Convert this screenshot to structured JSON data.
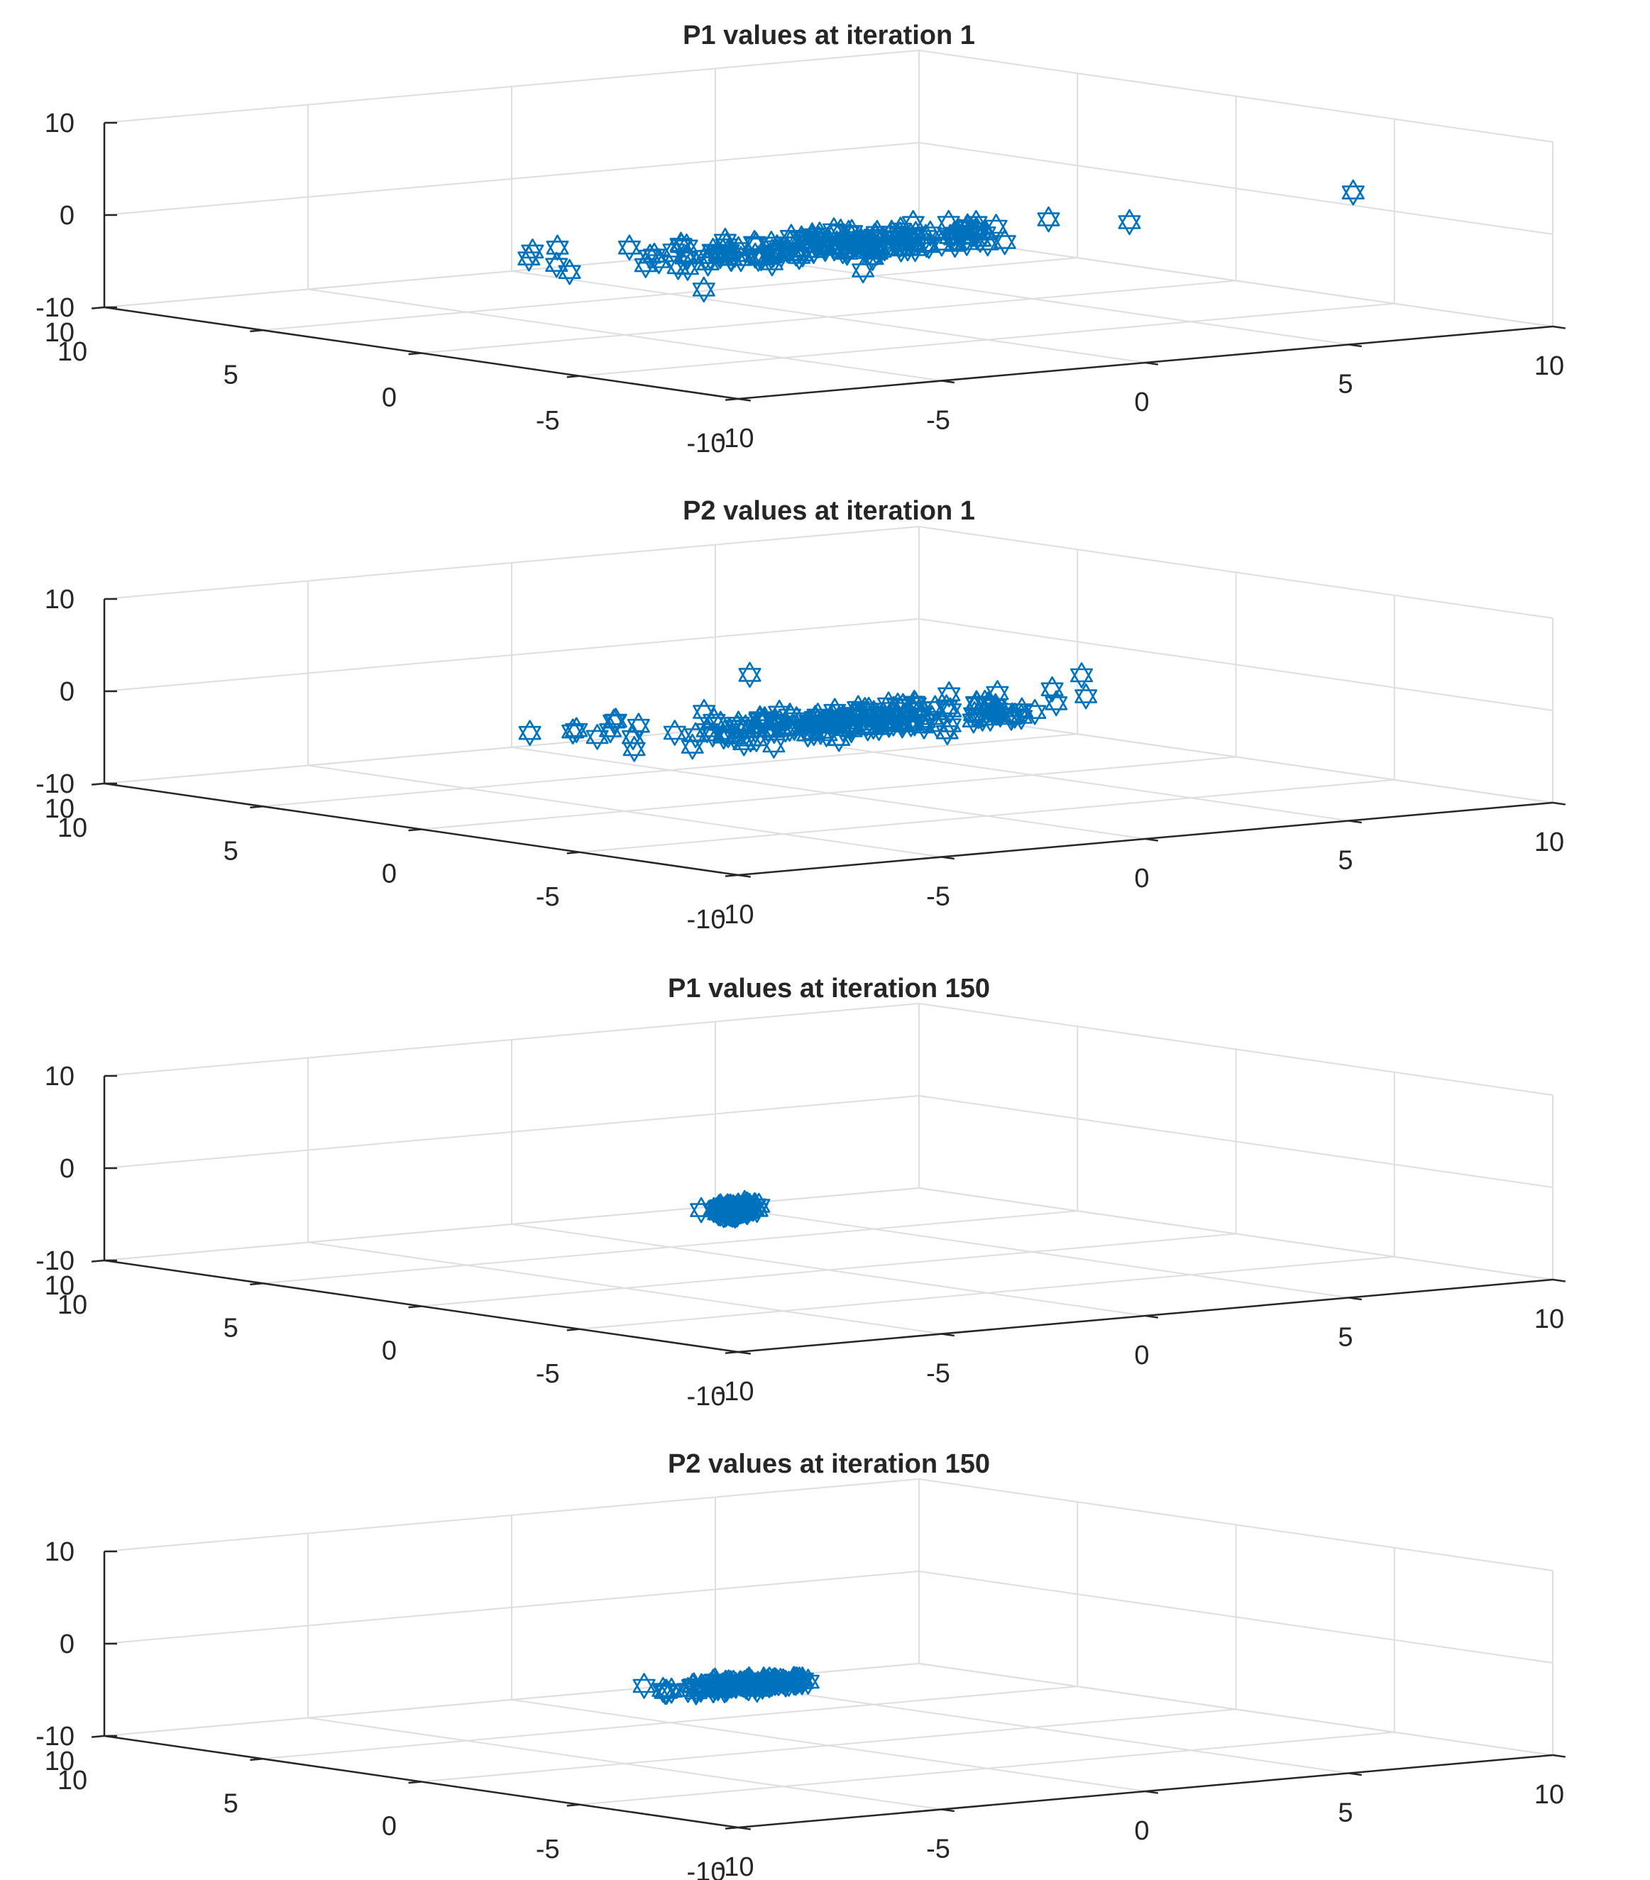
{
  "figure": {
    "marker_color": "#0072bd",
    "grid_color": "#dedede",
    "axis_color": "#262626",
    "marker": "hexagram-icon"
  },
  "chart_data": [
    {
      "type": "scatter3",
      "title": "P1 values at iteration 1",
      "xlim": [
        -10,
        10
      ],
      "ylim": [
        -10,
        10
      ],
      "zlim": [
        -10,
        10
      ],
      "x_ticks": [
        "-10",
        "-5",
        "0",
        "5",
        "10"
      ],
      "y_ticks": [
        "-10",
        "-5",
        "0",
        "5",
        "10"
      ],
      "z_ticks": [
        "-10",
        "0",
        "10"
      ],
      "grid": true,
      "cluster": {
        "center": [
          -2.6,
          -3.6,
          0.6
        ],
        "spread": [
          2.0,
          0.6,
          0.7
        ],
        "count": 140
      },
      "outliers": [
        [
          -8.6,
          -1.6,
          0.5
        ],
        [
          -8.2,
          -1.2,
          0.9
        ],
        [
          -7.9,
          -1.6,
          1.4
        ],
        [
          -6.3,
          -2.6,
          0.4
        ],
        [
          -5.8,
          -3.0,
          0.2
        ],
        [
          -6.6,
          -2.2,
          1.2
        ],
        [
          -2.8,
          -4.1,
          0.7
        ],
        [
          -2.9,
          -3.0,
          0.8
        ],
        [
          -0.5,
          -5.3,
          3.0
        ],
        [
          0.5,
          -6.3,
          3.5
        ],
        [
          -0.8,
          -5.0,
          1.8
        ],
        [
          6.5,
          -8.2,
          5.0
        ],
        [
          -1.8,
          -4.6,
          0.3
        ],
        [
          -4.0,
          -3.4,
          0.0
        ],
        [
          -5.2,
          -3.5,
          0.7
        ]
      ]
    },
    {
      "type": "scatter3",
      "title": "P2 values at iteration 1",
      "xlim": [
        -10,
        10
      ],
      "ylim": [
        -10,
        10
      ],
      "zlim": [
        -10,
        10
      ],
      "x_ticks": [
        "-10",
        "-5",
        "0",
        "5",
        "10"
      ],
      "y_ticks": [
        "-10",
        "-5",
        "0",
        "5",
        "10"
      ],
      "z_ticks": [
        "-10",
        "0",
        "10"
      ],
      "grid": true,
      "cluster": {
        "center": [
          -2.4,
          -3.7,
          0.5
        ],
        "spread": [
          2.0,
          0.6,
          0.7
        ],
        "count": 140
      },
      "outliers": [
        [
          -8.5,
          -1.5,
          0.6
        ],
        [
          -7.6,
          -1.7,
          0.5
        ],
        [
          -6.9,
          -2.1,
          1.5
        ],
        [
          -6.0,
          -1.0,
          0.7
        ],
        [
          -7.2,
          -1.3,
          0.3
        ],
        [
          -3.8,
          -2.4,
          5.5
        ],
        [
          1.0,
          -6.7,
          5.7
        ],
        [
          -0.9,
          -5.0,
          1.8
        ],
        [
          -0.5,
          -5.5,
          1.0
        ],
        [
          0.0,
          -5.8,
          1.3
        ],
        [
          -1.4,
          -4.4,
          0.2
        ],
        [
          -2.4,
          -4.5,
          0.4
        ],
        [
          -5.0,
          -2.5,
          2.0
        ],
        [
          -6.6,
          -1.6,
          0.2
        ]
      ]
    },
    {
      "type": "scatter3",
      "title": "P1 values at iteration 150",
      "xlim": [
        -10,
        10
      ],
      "ylim": [
        -10,
        10
      ],
      "zlim": [
        -10,
        10
      ],
      "x_ticks": [
        "-10",
        "-5",
        "0",
        "5",
        "10"
      ],
      "y_ticks": [
        "-10",
        "-5",
        "0",
        "5",
        "10"
      ],
      "z_ticks": [
        "-10",
        "0",
        "10"
      ],
      "grid": true,
      "cluster": {
        "center": [
          -4.8,
          -3.2,
          0.0
        ],
        "spread": [
          0.25,
          0.1,
          0.25
        ],
        "count": 70
      },
      "outliers": []
    },
    {
      "type": "scatter3",
      "title": "P2 values at iteration 150",
      "xlim": [
        -10,
        10
      ],
      "ylim": [
        -10,
        10
      ],
      "zlim": [
        -10,
        10
      ],
      "x_ticks": [
        "-10",
        "-5",
        "0",
        "5",
        "10"
      ],
      "y_ticks": [
        "-10",
        "-5",
        "0",
        "5",
        "10"
      ],
      "z_ticks": [
        "-10",
        "0",
        "10"
      ],
      "grid": true,
      "cluster": {
        "center": [
          -4.6,
          -3.2,
          0.0
        ],
        "spread": [
          0.7,
          0.2,
          0.2
        ],
        "count": 90
      },
      "outliers": [
        [
          -3.8,
          -3.8,
          0.2
        ],
        [
          -5.3,
          -2.8,
          -0.1
        ]
      ]
    }
  ]
}
